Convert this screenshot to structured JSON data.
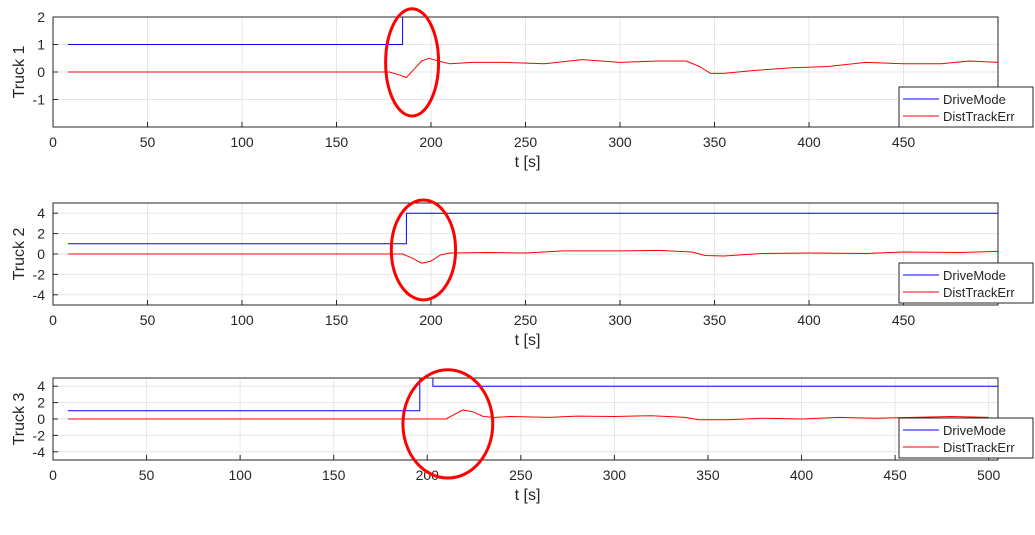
{
  "chart_data": [
    {
      "type": "line",
      "ylabel": "Truck 1",
      "xlabel": "t [s]",
      "xlim": [
        0,
        500
      ],
      "ylim": [
        -2,
        2
      ],
      "xticks": [
        0,
        50,
        100,
        150,
        200,
        250,
        300,
        350,
        400,
        450
      ],
      "xtick_labels": [
        "0",
        "50",
        "100",
        "150",
        "200",
        "250",
        "300",
        "350",
        "400",
        "450"
      ],
      "yticks": [
        2,
        1,
        0,
        -1
      ],
      "ytick_labels": [
        "2",
        "1",
        "0",
        "-1"
      ],
      "grid": true,
      "legend": "bottom-right",
      "series": [
        {
          "name": "DriveMode",
          "color": "#0000ff",
          "points": [
            [
              8,
              1
            ],
            [
              185,
              1
            ],
            [
              185,
              2
            ],
            [
              500,
              2
            ]
          ]
        },
        {
          "name": "DistTrackErr",
          "color": "#ff0000",
          "points": [
            [
              8,
              0
            ],
            [
              178,
              0
            ],
            [
              183,
              -0.1
            ],
            [
              187,
              -0.2
            ],
            [
              191,
              0.1
            ],
            [
              195,
              0.4
            ],
            [
              199,
              0.5
            ],
            [
              204,
              0.4
            ],
            [
              210,
              0.3
            ],
            [
              222,
              0.35
            ],
            [
              240,
              0.35
            ],
            [
              260,
              0.3
            ],
            [
              280,
              0.45
            ],
            [
              300,
              0.35
            ],
            [
              320,
              0.4
            ],
            [
              335,
              0.4
            ],
            [
              342,
              0.2
            ],
            [
              348,
              -0.05
            ],
            [
              355,
              -0.05
            ],
            [
              370,
              0.05
            ],
            [
              390,
              0.15
            ],
            [
              410,
              0.2
            ],
            [
              430,
              0.35
            ],
            [
              450,
              0.3
            ],
            [
              470,
              0.3
            ],
            [
              485,
              0.4
            ],
            [
              500,
              0.35
            ]
          ]
        }
      ],
      "annotation": {
        "type": "ellipse",
        "color": "#ff0000",
        "center_x": 190,
        "center_y": 0.35,
        "radius_x": 14,
        "radius_y": 1.95
      }
    },
    {
      "type": "line",
      "ylabel": "Truck 2",
      "xlabel": "t [s]",
      "xlim": [
        0,
        500
      ],
      "ylim": [
        -5,
        5
      ],
      "xticks": [
        0,
        50,
        100,
        150,
        200,
        250,
        300,
        350,
        400,
        450
      ],
      "xtick_labels": [
        "0",
        "50",
        "100",
        "150",
        "200",
        "250",
        "300",
        "350",
        "400",
        "450"
      ],
      "yticks": [
        4,
        2,
        0,
        -2,
        -4
      ],
      "ytick_labels": [
        "4",
        "2",
        "0",
        "-2",
        "-4"
      ],
      "grid": true,
      "legend": "bottom-right",
      "series": [
        {
          "name": "DriveMode",
          "color": "#0000ff",
          "points": [
            [
              8,
              1
            ],
            [
              187,
              1
            ],
            [
              187,
              4
            ],
            [
              500,
              4
            ]
          ]
        },
        {
          "name": "DistTrackErr",
          "color": "#ff0000",
          "points": [
            [
              8,
              0
            ],
            [
              185,
              0
            ],
            [
              190,
              -0.4
            ],
            [
              195,
              -0.9
            ],
            [
              200,
              -0.7
            ],
            [
              205,
              -0.1
            ],
            [
              210,
              0.1
            ],
            [
              230,
              0.15
            ],
            [
              250,
              0.1
            ],
            [
              270,
              0.3
            ],
            [
              300,
              0.3
            ],
            [
              320,
              0.35
            ],
            [
              338,
              0.2
            ],
            [
              345,
              -0.15
            ],
            [
              355,
              -0.2
            ],
            [
              375,
              0.05
            ],
            [
              400,
              0.1
            ],
            [
              430,
              0.05
            ],
            [
              450,
              0.2
            ],
            [
              480,
              0.15
            ],
            [
              500,
              0.25
            ]
          ]
        }
      ],
      "annotation": {
        "type": "ellipse",
        "color": "#ff0000",
        "center_x": 196,
        "center_y": 0.4,
        "radius_x": 17,
        "radius_y": 4.9
      }
    },
    {
      "type": "line",
      "ylabel": "Truck 3",
      "xlabel": "t [s]",
      "xlim": [
        0,
        505
      ],
      "ylim": [
        -5,
        5
      ],
      "xticks": [
        0,
        50,
        100,
        150,
        200,
        250,
        300,
        350,
        400,
        450,
        500
      ],
      "xtick_labels": [
        "0",
        "50",
        "100",
        "150",
        "200",
        "250",
        "300",
        "350",
        "400",
        "450",
        "500"
      ],
      "yticks": [
        4,
        2,
        0,
        -2,
        -4
      ],
      "ytick_labels": [
        "4",
        "2",
        "0",
        "-2",
        "-4"
      ],
      "grid": true,
      "legend": "bottom-right",
      "series": [
        {
          "name": "DriveMode",
          "color": "#0000ff",
          "points": [
            [
              8,
              1
            ],
            [
              196,
              1
            ],
            [
              196,
              5
            ],
            [
              203,
              5
            ],
            [
              203,
              4
            ],
            [
              505,
              4
            ]
          ]
        },
        {
          "name": "DistTrackErr",
          "color": "#ff0000",
          "points": [
            [
              8,
              0
            ],
            [
              210,
              0
            ],
            [
              214,
              0.5
            ],
            [
              219,
              1.1
            ],
            [
              224,
              0.9
            ],
            [
              230,
              0.3
            ],
            [
              236,
              0.2
            ],
            [
              245,
              0.3
            ],
            [
              265,
              0.2
            ],
            [
              280,
              0.35
            ],
            [
              300,
              0.3
            ],
            [
              320,
              0.4
            ],
            [
              338,
              0.2
            ],
            [
              345,
              -0.1
            ],
            [
              360,
              -0.1
            ],
            [
              380,
              0.1
            ],
            [
              400,
              0.0
            ],
            [
              420,
              0.2
            ],
            [
              440,
              0.1
            ],
            [
              460,
              0.2
            ],
            [
              480,
              0.3
            ],
            [
              500,
              0.2
            ]
          ]
        }
      ],
      "annotation": {
        "type": "ellipse",
        "color": "#ff0000",
        "center_x": 211,
        "center_y": -0.6,
        "radius_x": 24,
        "radius_y": 6.6
      }
    }
  ]
}
